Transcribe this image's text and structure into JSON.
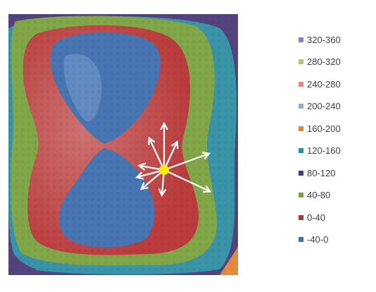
{
  "chart_data": {
    "type": "heatmap",
    "title": "",
    "xlabel": "",
    "ylabel": "",
    "legend_position": "right",
    "grid": false,
    "bands": [
      {
        "label": "320-360",
        "range": [
          320,
          360
        ],
        "color": "#8e7cc3"
      },
      {
        "label": "280-320",
        "range": [
          280,
          320
        ],
        "color": "#a9c97a"
      },
      {
        "label": "240-280",
        "range": [
          240,
          280
        ],
        "color": "#de8585"
      },
      {
        "label": "200-240",
        "range": [
          200,
          240
        ],
        "color": "#8eaee0"
      },
      {
        "label": "160-200",
        "range": [
          160,
          200
        ],
        "color": "#e38432"
      },
      {
        "label": "120-160",
        "range": [
          120,
          160
        ],
        "color": "#2f8ea2"
      },
      {
        "label": "80-120",
        "range": [
          80,
          120
        ],
        "color": "#4b3a77"
      },
      {
        "label": "40-80",
        "range": [
          40,
          80
        ],
        "color": "#7aa23e"
      },
      {
        "label": "0-40",
        "range": [
          0,
          40
        ],
        "color": "#b73232"
      },
      {
        "label": "-40-0",
        "range": [
          -40,
          0
        ],
        "color": "#3e6fae"
      }
    ],
    "marker": {
      "color": "#ffee00",
      "arrow_count": 9,
      "arrow_color": "#ffffff"
    }
  }
}
